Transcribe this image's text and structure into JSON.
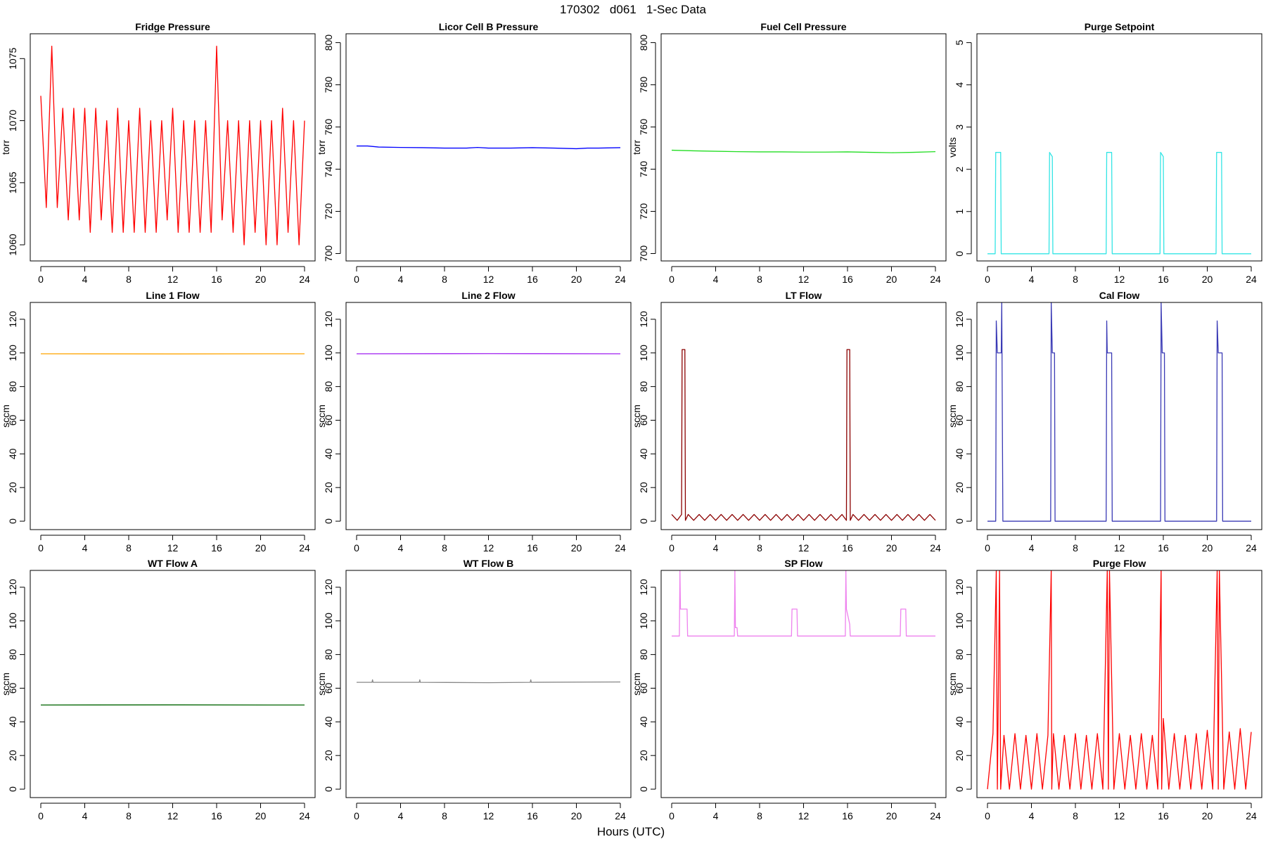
{
  "title": "170302   d061   1-Sec Data",
  "xlabel": "Hours (UTC)",
  "chart_data": [
    {
      "type": "line",
      "title": "Fridge Pressure",
      "ylabel": "torr",
      "color": "#ff0000",
      "x": [
        0,
        0.5,
        1,
        1.5,
        2,
        2.5,
        3,
        3.5,
        4,
        4.5,
        5,
        5.5,
        6,
        6.5,
        7,
        7.5,
        8,
        8.5,
        9,
        9.5,
        10,
        10.5,
        11,
        11.5,
        12,
        12.5,
        13,
        13.5,
        14,
        14.5,
        15,
        15.5,
        16,
        16.5,
        17,
        17.5,
        18,
        18.5,
        19,
        19.5,
        20,
        20.5,
        21,
        21.5,
        22,
        22.5,
        23,
        23.5,
        24
      ],
      "values": [
        1072,
        1063,
        1076,
        1063,
        1071,
        1062,
        1071,
        1062,
        1071,
        1061,
        1071,
        1062,
        1070,
        1061,
        1071,
        1061,
        1070,
        1061,
        1071,
        1061,
        1070,
        1061,
        1070,
        1062,
        1071,
        1061,
        1070,
        1061,
        1070,
        1061,
        1070,
        1061,
        1076,
        1062,
        1070,
        1061,
        1070,
        1060,
        1070,
        1061,
        1070,
        1060,
        1070,
        1060,
        1071,
        1061,
        1070,
        1060,
        1070
      ],
      "xlim": [
        -0.96,
        24.96
      ],
      "ylim": [
        1058.7,
        1077
      ],
      "xticks": [
        0,
        4,
        8,
        12,
        16,
        20,
        24
      ],
      "yticks": [
        1060,
        1065,
        1070,
        1075
      ]
    },
    {
      "type": "line",
      "title": "Licor Cell B Pressure",
      "ylabel": "torr",
      "color": "#0000ff",
      "x": [
        0,
        1,
        2,
        4,
        6,
        8,
        10,
        11,
        12,
        14,
        16,
        18,
        20,
        21,
        22,
        24
      ],
      "values": [
        751,
        751,
        750.5,
        750.3,
        750.2,
        750,
        750,
        750.3,
        750,
        750,
        750.2,
        750,
        749.7,
        750,
        750,
        750.2
      ],
      "xlim": [
        -0.96,
        24.96
      ],
      "ylim": [
        696.5,
        804.2
      ],
      "xticks": [
        0,
        4,
        8,
        12,
        16,
        20,
        24
      ],
      "yticks": [
        700,
        720,
        740,
        760,
        780,
        800
      ]
    },
    {
      "type": "line",
      "title": "Fuel Cell Pressure",
      "ylabel": "torr",
      "color": "#22dd22",
      "x": [
        0,
        2,
        4,
        6,
        8,
        10,
        12,
        14,
        16,
        18,
        20,
        22,
        24
      ],
      "values": [
        749,
        748.7,
        748.5,
        748.3,
        748.2,
        748.2,
        748.1,
        748.1,
        748.2,
        748,
        747.8,
        748,
        748.3
      ],
      "xlim": [
        -0.96,
        24.96
      ],
      "ylim": [
        696.5,
        804.2
      ],
      "xticks": [
        0,
        4,
        8,
        12,
        16,
        20,
        24
      ],
      "yticks": [
        700,
        720,
        740,
        760,
        780,
        800
      ]
    },
    {
      "type": "line",
      "title": "Purge Setpoint",
      "ylabel": "volts",
      "color": "#33e5e5",
      "x": [
        0,
        0.7,
        0.75,
        1.2,
        1.25,
        5.6,
        5.65,
        5.9,
        5.95,
        10.8,
        10.85,
        11.3,
        11.35,
        15.7,
        15.75,
        16,
        16.05,
        20.8,
        20.85,
        21.3,
        21.35,
        24
      ],
      "values": [
        0,
        0,
        2.4,
        2.4,
        0,
        0,
        2.4,
        2.3,
        0,
        0,
        2.4,
        2.4,
        0,
        0,
        2.4,
        2.3,
        0,
        0,
        2.4,
        2.4,
        0,
        0
      ],
      "xlim": [
        -0.96,
        24.96
      ],
      "ylim": [
        -0.17,
        5.21
      ],
      "xticks": [
        0,
        4,
        8,
        12,
        16,
        20,
        24
      ],
      "yticks": [
        0,
        1,
        2,
        3,
        4,
        5
      ]
    },
    {
      "type": "line",
      "title": "Line 1 Flow",
      "ylabel": "sccm",
      "color": "#ffa500",
      "x": [
        0,
        12,
        24
      ],
      "values": [
        99.5,
        99.4,
        99.5
      ],
      "xlim": [
        -0.96,
        24.96
      ],
      "ylim": [
        -5,
        130
      ],
      "xticks": [
        0,
        4,
        8,
        12,
        16,
        20,
        24
      ],
      "yticks": [
        0,
        20,
        40,
        60,
        80,
        100,
        120
      ]
    },
    {
      "type": "line",
      "title": "Line 2 Flow",
      "ylabel": "sccm",
      "color": "#a020f0",
      "x": [
        0,
        12,
        24
      ],
      "values": [
        99.5,
        99.6,
        99.5
      ],
      "xlim": [
        -0.96,
        24.96
      ],
      "ylim": [
        -5,
        130
      ],
      "xticks": [
        0,
        4,
        8,
        12,
        16,
        20,
        24
      ],
      "yticks": [
        0,
        20,
        40,
        60,
        80,
        100,
        120
      ]
    },
    {
      "type": "line",
      "title": "LT Flow",
      "ylabel": "sccm",
      "color": "#8b0000",
      "x": [
        0,
        0.5,
        0.9,
        0.95,
        1.2,
        1.25,
        1.5,
        2,
        2.5,
        3,
        3.5,
        4,
        4.5,
        5,
        5.5,
        6,
        6.5,
        7,
        7.5,
        8,
        8.5,
        9,
        9.5,
        10,
        10.5,
        11,
        11.5,
        12,
        12.5,
        13,
        13.5,
        14,
        14.5,
        15,
        15.5,
        15.9,
        15.95,
        16.2,
        16.25,
        16.5,
        17,
        17.5,
        18,
        18.5,
        19,
        19.5,
        20,
        20.5,
        21,
        21.5,
        22,
        22.5,
        23,
        23.5,
        24
      ],
      "values": [
        4,
        0.5,
        4,
        102,
        102,
        0.5,
        4,
        0.5,
        4,
        0.5,
        4,
        0.5,
        4,
        0.5,
        4,
        0.5,
        4,
        0.5,
        4,
        0.5,
        4,
        0.5,
        4,
        0.5,
        4,
        0.5,
        4,
        0.5,
        4,
        0.5,
        4,
        0.5,
        4,
        0.5,
        4,
        0.5,
        102,
        102,
        0.5,
        4,
        0.5,
        4,
        0.5,
        4,
        0.5,
        4,
        0.5,
        4,
        0.5,
        4,
        0.5,
        4,
        0.5,
        4,
        0.5
      ],
      "xlim": [
        -0.96,
        24.96
      ],
      "ylim": [
        -5,
        130
      ],
      "xticks": [
        0,
        4,
        8,
        12,
        16,
        20,
        24
      ],
      "yticks": [
        0,
        20,
        40,
        60,
        80,
        100,
        120
      ]
    },
    {
      "type": "line",
      "title": "Cal Flow",
      "ylabel": "sccm",
      "color": "#3a3ab5",
      "x": [
        0,
        0.75,
        0.8,
        0.9,
        1.25,
        1.3,
        1.4,
        5.75,
        5.8,
        5.9,
        6.1,
        6.15,
        10.8,
        10.85,
        10.9,
        11.3,
        11.35,
        15.75,
        15.8,
        15.9,
        16.1,
        16.15,
        20.85,
        20.9,
        21.0,
        21.35,
        21.4,
        24
      ],
      "values": [
        0,
        0,
        119,
        100,
        100,
        130,
        0,
        0,
        130,
        100,
        100,
        0,
        0,
        119,
        100,
        100,
        0,
        0,
        130,
        100,
        100,
        0,
        0,
        119,
        100,
        100,
        0,
        0
      ],
      "xlim": [
        -0.96,
        24.96
      ],
      "ylim": [
        -5,
        130
      ],
      "xticks": [
        0,
        4,
        8,
        12,
        16,
        20,
        24
      ],
      "yticks": [
        0,
        20,
        40,
        60,
        80,
        100,
        120
      ]
    },
    {
      "type": "line",
      "title": "WT Flow A",
      "ylabel": "sccm",
      "color": "#006400",
      "x": [
        0,
        12,
        24
      ],
      "values": [
        50,
        50.1,
        50
      ],
      "xlim": [
        -0.96,
        24.96
      ],
      "ylim": [
        -5,
        130
      ],
      "xticks": [
        0,
        4,
        8,
        12,
        16,
        20,
        24
      ],
      "yticks": [
        0,
        20,
        40,
        60,
        80,
        100,
        120
      ]
    },
    {
      "type": "line",
      "title": "WT Flow B",
      "ylabel": "sccm",
      "color": "#888888",
      "x": [
        0,
        1.4,
        1.45,
        1.5,
        5.7,
        5.75,
        5.8,
        12,
        15.8,
        15.85,
        15.9,
        24
      ],
      "values": [
        63.5,
        63.5,
        65,
        63.5,
        63.5,
        65,
        63.5,
        63.3,
        63.5,
        65,
        63.5,
        63.7
      ],
      "xlim": [
        -0.96,
        24.96
      ],
      "ylim": [
        -5,
        130
      ],
      "xticks": [
        0,
        4,
        8,
        12,
        16,
        20,
        24
      ],
      "yticks": [
        0,
        20,
        40,
        60,
        80,
        100,
        120
      ]
    },
    {
      "type": "line",
      "title": "SP Flow",
      "ylabel": "sccm",
      "color": "#ee82ee",
      "x": [
        0,
        0.7,
        0.75,
        0.8,
        1.4,
        1.45,
        5.7,
        5.75,
        5.8,
        5.95,
        6.0,
        10.9,
        10.95,
        11.4,
        11.45,
        15.8,
        15.85,
        15.9,
        16.2,
        16.25,
        20.8,
        20.85,
        21.3,
        21.35,
        24
      ],
      "values": [
        91,
        91,
        130,
        107,
        107,
        91,
        91,
        130,
        96,
        96,
        91,
        91,
        107,
        107,
        91,
        91,
        130,
        107,
        98,
        91,
        91,
        107,
        107,
        91,
        91
      ],
      "xlim": [
        -0.96,
        24.96
      ],
      "ylim": [
        -5,
        130
      ],
      "xticks": [
        0,
        4,
        8,
        12,
        16,
        20,
        24
      ],
      "yticks": [
        0,
        20,
        40,
        60,
        80,
        100,
        120
      ]
    },
    {
      "type": "line",
      "title": "Purge Flow",
      "ylabel": "sccm",
      "color": "#ff0000",
      "x": [
        0,
        0.5,
        0.8,
        0.9,
        1.1,
        1.2,
        1.5,
        2,
        2.5,
        3,
        3.5,
        4,
        4.5,
        5,
        5.5,
        5.8,
        5.85,
        6,
        6.5,
        7,
        7.5,
        8,
        8.5,
        9,
        9.5,
        10,
        10.5,
        10.9,
        11.0,
        11.1,
        11.5,
        12,
        12.5,
        13,
        13.5,
        14,
        14.5,
        15,
        15.5,
        15.8,
        15.85,
        16,
        16.5,
        17,
        17.5,
        18,
        18.5,
        19,
        19.5,
        20,
        20.5,
        20.9,
        21.0,
        21.1,
        21.5,
        22,
        22.5,
        23,
        23.5,
        24
      ],
      "values": [
        0,
        33,
        130,
        0,
        130,
        0,
        32,
        0,
        33,
        0,
        32,
        0,
        33,
        0,
        32,
        130,
        0,
        33,
        0,
        32,
        0,
        33,
        0,
        32,
        0,
        33,
        0,
        130,
        0,
        130,
        0,
        33,
        0,
        32,
        0,
        33,
        0,
        32,
        0,
        130,
        0,
        42,
        0,
        33,
        0,
        32,
        0,
        33,
        0,
        35,
        0,
        130,
        0,
        130,
        0,
        34,
        0,
        36,
        0,
        34
      ],
      "xlim": [
        -0.96,
        24.96
      ],
      "ylim": [
        -5,
        130
      ],
      "xticks": [
        0,
        4,
        8,
        12,
        16,
        20,
        24
      ],
      "yticks": [
        0,
        20,
        40,
        60,
        80,
        100,
        120
      ]
    }
  ]
}
